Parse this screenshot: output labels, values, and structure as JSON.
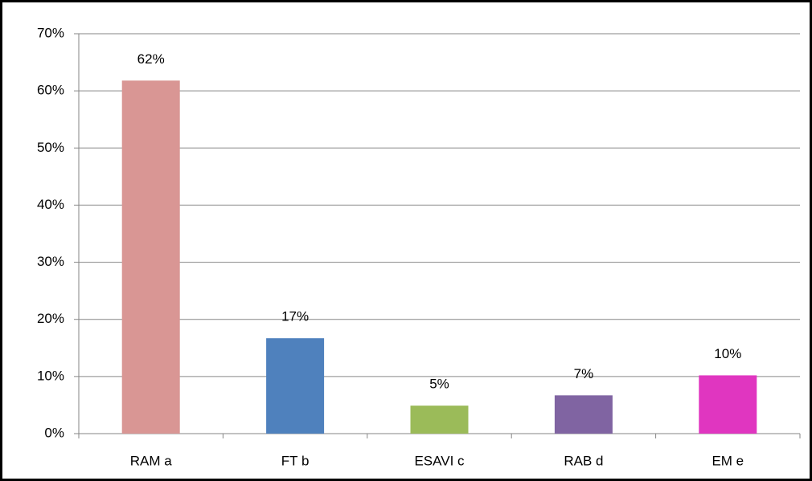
{
  "chart_data": {
    "type": "bar",
    "categories": [
      "RAM a",
      "FT b",
      "ESAVI c",
      "RAB d",
      "EM e"
    ],
    "values": [
      61.8,
      16.7,
      4.9,
      6.7,
      10.2
    ],
    "value_labels": [
      "62%",
      "17%",
      "5%",
      "7%",
      "10%"
    ],
    "colors": [
      "#d99694",
      "#4f81bd",
      "#9bbb59",
      "#8064a2",
      "#e036c0"
    ],
    "ylim": [
      0,
      70
    ],
    "yticks": [
      {
        "value": 0,
        "label": "0%"
      },
      {
        "value": 10,
        "label": "10%"
      },
      {
        "value": 20,
        "label": "20%"
      },
      {
        "value": 30,
        "label": "30%"
      },
      {
        "value": 40,
        "label": "40%"
      },
      {
        "value": 50,
        "label": "50%"
      },
      {
        "value": 60,
        "label": "60%"
      },
      {
        "value": 70,
        "label": "70%"
      }
    ],
    "grid": true
  }
}
